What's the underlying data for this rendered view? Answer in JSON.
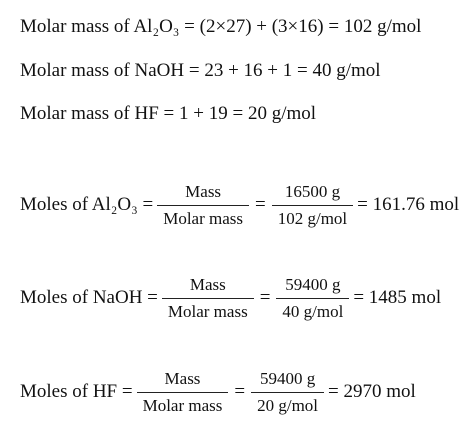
{
  "molar_masses": [
    "Molar mass of Al₂O₃ = (2×27) + (3×16) = 102 g/mol",
    "Molar mass of NaOH = 23 + 16 + 1 = 40 g/mol",
    "Molar mass of HF = 1 + 19 = 20 g/mol"
  ],
  "moles": [
    {
      "label": "Moles of Al₂O₃ =",
      "fraction_1": {
        "numerator": "Mass",
        "denominator": "Molar mass"
      },
      "equals": "=",
      "fraction_2": {
        "numerator": "16500 g",
        "denominator": "102 g/mol"
      },
      "result": "= 161.76 mol"
    },
    {
      "label": "Moles of NaOH =",
      "fraction_1": {
        "numerator": "Mass",
        "denominator": "Molar mass"
      },
      "equals": "=",
      "fraction_2": {
        "numerator": "59400 g",
        "denominator": "40 g/mol"
      },
      "result": "= 1485 mol"
    },
    {
      "label": "Moles of HF =",
      "fraction_1": {
        "numerator": "Mass",
        "denominator": "Molar mass"
      },
      "equals": "=",
      "fraction_2": {
        "numerator": "59400 g",
        "denominator": "20 g/mol"
      },
      "result": "= 2970 mol"
    }
  ]
}
